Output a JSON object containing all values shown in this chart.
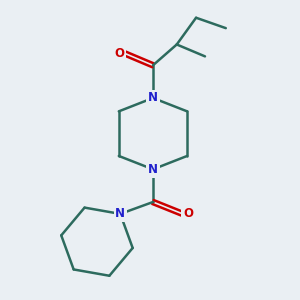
{
  "background_color": "#eaeff3",
  "bond_color": "#2d6b5e",
  "nitrogen_color": "#2020cc",
  "oxygen_color": "#cc0000",
  "line_width": 1.8,
  "figsize": [
    3.0,
    3.0
  ],
  "dpi": 100,
  "xlim": [
    0,
    10
  ],
  "ylim": [
    0,
    10
  ]
}
